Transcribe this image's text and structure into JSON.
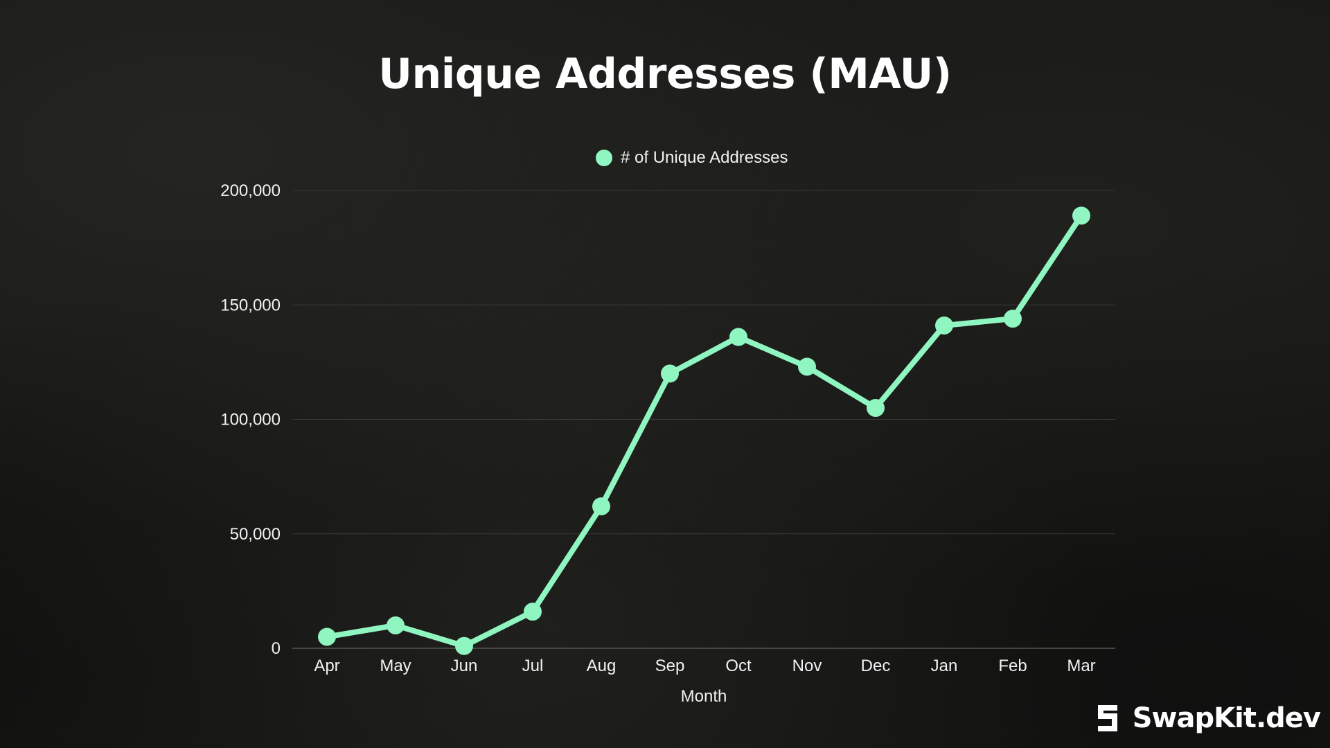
{
  "chart_data": {
    "type": "line",
    "title": "Unique Addresses (MAU)",
    "xlabel": "Month",
    "ylabel": "",
    "categories": [
      "Apr",
      "May",
      "Jun",
      "Jul",
      "Aug",
      "Sep",
      "Oct",
      "Nov",
      "Dec",
      "Jan",
      "Feb",
      "Mar"
    ],
    "series": [
      {
        "name": "# of Unique Addresses",
        "values": [
          5000,
          10000,
          1000,
          16000,
          62000,
          120000,
          136000,
          123000,
          105000,
          141000,
          144000,
          189000
        ],
        "color": "#8ff5c1"
      }
    ],
    "ylim": [
      0,
      200000
    ],
    "yticks": [
      "0",
      "50,000",
      "100,000",
      "150,000",
      "200,000"
    ],
    "ytick_values": [
      0,
      50000,
      100000,
      150000,
      200000
    ],
    "grid": true,
    "legend_position": "top-center"
  },
  "colors": {
    "line": "#8ff5c1",
    "grid": "#3a3a36",
    "axis_text": "#f2f2f2"
  },
  "brand": {
    "name": "SwapKit.dev",
    "icon": "swapkit-logo-icon"
  }
}
